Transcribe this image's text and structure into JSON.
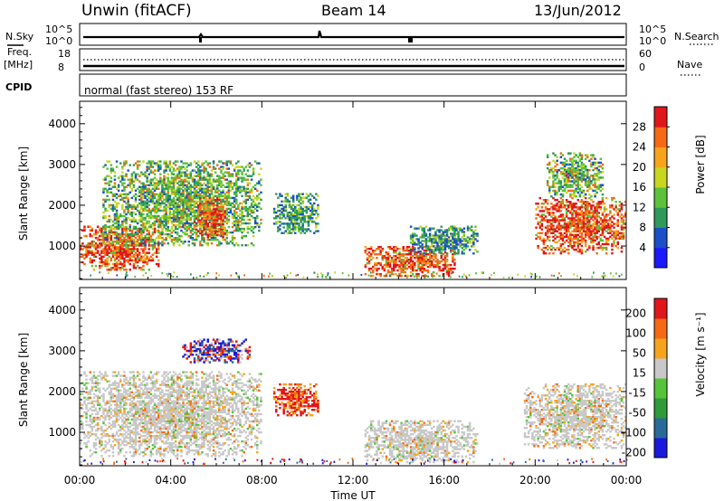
{
  "header": {
    "station": "Unwin (fitACF)",
    "beam": "Beam 14",
    "date": "13/Jun/2012"
  },
  "summary": {
    "nsky_label": "N.Sky",
    "nsky_ticks": [
      "10^5",
      "10^0"
    ],
    "nsearch_label": "N.Search",
    "freq_label_line1": "Freq.",
    "freq_label_line2": "[MHz]",
    "freq_ticks": [
      "18",
      "8"
    ],
    "nave_ticks": [
      "60",
      "0"
    ],
    "nave_label": "Nave",
    "cpid_label": "CPID",
    "cpid_text": "normal (fast stereo) 153 RF"
  },
  "chart_data": [
    {
      "type": "heatmap",
      "panel": "power",
      "ylabel": "Slant Range [km]",
      "ylim": [
        180,
        4550
      ],
      "y_ticks": [
        1000,
        2000,
        3000,
        4000
      ],
      "xlim": [
        "00:00",
        "24:00"
      ],
      "colorbar": {
        "label": "Power [dB]",
        "ticks": [
          "4",
          "8",
          "12",
          "16",
          "20",
          "24",
          "28"
        ],
        "colors": [
          "#1a1aff",
          "#1c4fc8",
          "#2f9a5a",
          "#5cc23a",
          "#c8d61e",
          "#f7a41c",
          "#f56a12",
          "#e0161a"
        ]
      },
      "regions": [
        {
          "t0": 0.0,
          "t1": 3.5,
          "r0": 400,
          "r1": 1500,
          "level": "high"
        },
        {
          "t0": 1.0,
          "t1": 8.0,
          "r0": 1000,
          "r1": 3100,
          "level": "medium"
        },
        {
          "t0": 5.0,
          "t1": 6.5,
          "r0": 1200,
          "r1": 2200,
          "level": "high"
        },
        {
          "t0": 8.5,
          "t1": 10.5,
          "r0": 1300,
          "r1": 2300,
          "level": "low"
        },
        {
          "t0": 12.5,
          "t1": 16.5,
          "r0": 250,
          "r1": 1000,
          "level": "high"
        },
        {
          "t0": 14.5,
          "t1": 17.5,
          "r0": 800,
          "r1": 1500,
          "level": "low"
        },
        {
          "t0": 20.0,
          "t1": 24.0,
          "r0": 800,
          "r1": 2200,
          "level": "high"
        },
        {
          "t0": 20.5,
          "t1": 23.0,
          "r0": 2200,
          "r1": 3300,
          "level": "medium"
        }
      ]
    },
    {
      "type": "heatmap",
      "panel": "velocity",
      "ylabel": "Slant Range [km]",
      "ylim": [
        180,
        4550
      ],
      "y_ticks": [
        1000,
        2000,
        3000,
        4000
      ],
      "xlim": [
        "00:00",
        "24:00"
      ],
      "x_ticks": [
        "00:00",
        "04:00",
        "08:00",
        "12:00",
        "16:00",
        "20:00",
        "00:00"
      ],
      "xlabel": "Time UT",
      "colorbar": {
        "label": "Velocity [m s⁻¹]",
        "ticks": [
          "200",
          "100",
          "50",
          "15",
          "-15",
          "-50",
          "-100",
          "-200"
        ],
        "colors": [
          "#1a1adc",
          "#2a6a9a",
          "#2f9a3a",
          "#56c43a",
          "#c8c8c8",
          "#f5a41c",
          "#f56a12",
          "#e0161a"
        ]
      },
      "regions": [
        {
          "t0": 0.0,
          "t1": 8.0,
          "r0": 400,
          "r1": 2500,
          "level": "grey"
        },
        {
          "t0": 4.5,
          "t1": 7.5,
          "r0": 2700,
          "r1": 3300,
          "level": "red-blue"
        },
        {
          "t0": 8.5,
          "t1": 10.5,
          "r0": 1400,
          "r1": 2200,
          "level": "red"
        },
        {
          "t0": 12.5,
          "t1": 17.5,
          "r0": 250,
          "r1": 1300,
          "level": "grey"
        },
        {
          "t0": 19.5,
          "t1": 24.0,
          "r0": 600,
          "r1": 2200,
          "level": "grey"
        }
      ]
    }
  ]
}
